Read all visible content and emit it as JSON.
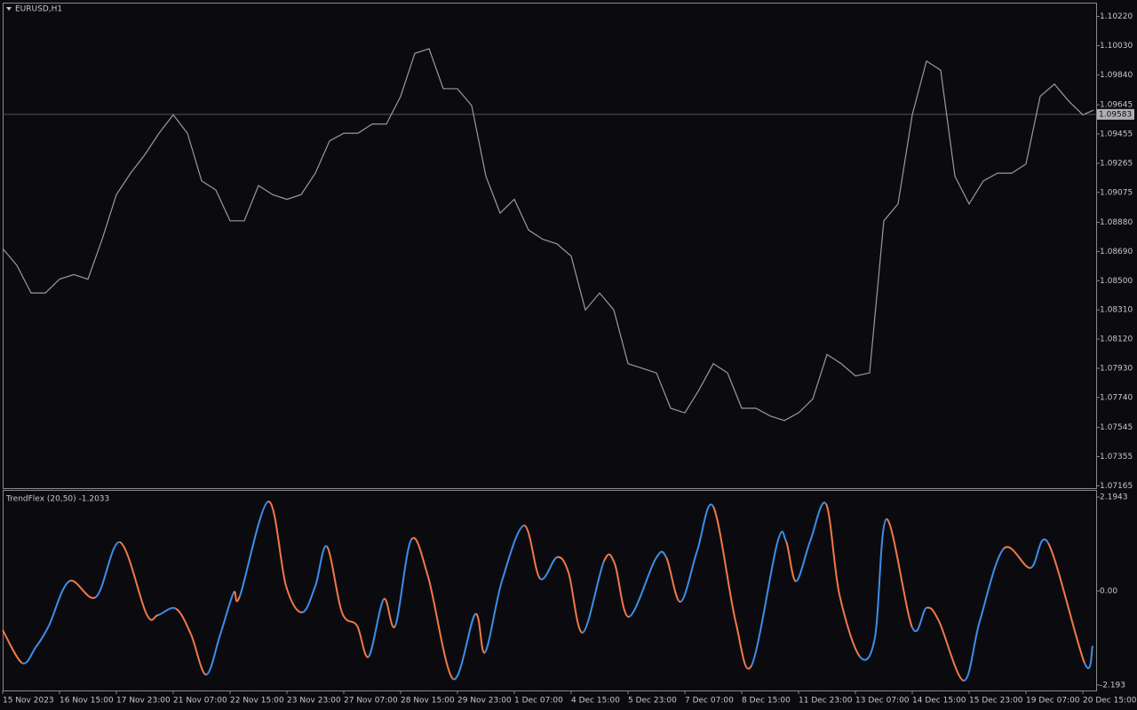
{
  "chart_data": [
    {
      "type": "line",
      "title": "EURUSD,H1",
      "color": "#9a9a9a",
      "x": [
        0,
        8,
        16,
        24,
        32,
        40,
        48,
        56,
        64,
        72,
        80,
        88,
        96,
        104,
        112,
        120,
        128,
        136,
        144,
        152,
        160,
        168,
        176,
        184,
        192,
        200,
        208,
        216,
        224,
        232,
        240,
        248,
        256,
        264,
        272,
        280,
        288,
        296,
        304,
        312,
        320,
        328,
        336,
        344,
        352,
        360,
        368,
        376,
        384,
        392,
        400,
        408,
        416,
        424,
        432,
        440,
        448,
        456,
        464,
        472,
        480,
        488,
        496,
        504,
        512,
        520,
        528,
        536,
        544,
        552,
        560,
        568,
        576,
        584,
        592,
        600,
        608,
        614
      ],
      "values": [
        1.0871,
        1.086,
        1.0842,
        1.0842,
        1.0851,
        1.0854,
        1.0851,
        1.0877,
        1.0906,
        1.092,
        1.0932,
        1.0946,
        1.0958,
        1.0946,
        1.0915,
        1.0909,
        1.0889,
        1.0889,
        1.0912,
        1.0906,
        1.0903,
        1.0906,
        1.092,
        1.0941,
        1.0946,
        1.0946,
        1.0952,
        1.0952,
        1.097,
        1.0998,
        1.1001,
        1.0975,
        1.0975,
        1.0964,
        1.0918,
        1.0894,
        1.0903,
        1.0883,
        1.0877,
        1.0874,
        1.0866,
        1.0831,
        1.0842,
        1.0831,
        1.0796,
        1.0793,
        1.079,
        1.0767,
        1.0764,
        1.0779,
        1.0796,
        1.079,
        1.0767,
        1.0767,
        1.0762,
        1.0759,
        1.0764,
        1.0773,
        1.0802,
        1.0796,
        1.0788,
        1.079,
        1.0889,
        1.09,
        1.0958,
        1.0993,
        1.0987,
        1.0918,
        1.09,
        1.0915,
        1.092,
        1.092,
        1.0926,
        1.097,
        1.0978,
        1.0967,
        1.0958,
        1.0961
      ],
      "xlim": [
        0,
        615.5
      ],
      "ylim": [
        1.0715,
        1.1031
      ],
      "yticks": [
        {
          "value": 1.1022,
          "label": "1.10220"
        },
        {
          "value": 1.1003,
          "label": "1.10030"
        },
        {
          "value": 1.0984,
          "label": "1.09840"
        },
        1.09645,
        1.09455,
        1.09265,
        1.09075,
        {
          "value": 1.0888,
          "label": "1.08880"
        },
        {
          "value": 1.0869,
          "label": "1.08690"
        },
        {
          "value": 1.085,
          "label": "1.08500"
        },
        {
          "value": 1.0831,
          "label": "1.08310"
        },
        {
          "value": 1.0812,
          "label": "1.08120"
        },
        {
          "value": 1.0793,
          "label": "1.07930"
        },
        {
          "value": 1.0774,
          "label": "1.07740"
        },
        1.07545,
        1.07355,
        1.07165
      ],
      "current_price": 1.09583
    },
    {
      "type": "line",
      "title": "TrendFlex (20,50) -1.2033",
      "up_color": "#3d8ee8",
      "down_color": "#f0784a",
      "x": [
        0,
        11,
        18.5,
        26,
        37.5,
        52.5,
        66,
        81,
        87.5,
        97.5,
        106,
        114.5,
        122.5,
        130,
        133.5,
        149.5,
        159.5,
        168.5,
        176,
        182.5,
        191,
        199.5,
        206,
        214.5,
        221,
        230,
        239.5,
        253.5,
        266,
        271.5,
        281,
        293.5,
        302.5,
        312,
        318.5,
        326.5,
        338.5,
        344.5,
        352.5,
        367.5,
        373.5,
        381.5,
        391,
        400,
        412.5,
        421.5,
        436,
        441,
        446.5,
        454.5,
        463.5,
        471,
        482.5,
        491,
        497.5,
        512,
        520,
        527,
        541,
        550,
        563.5,
        578.5,
        588.5,
        609,
        613.5
      ],
      "values": [
        -0.91,
        -1.68,
        -1.32,
        -0.81,
        0.23,
        -0.14,
        1.14,
        -0.54,
        -0.56,
        -0.41,
        -1.01,
        -1.95,
        -1.01,
        -0.04,
        -0.12,
        2.09,
        0.12,
        -0.5,
        0.12,
        1.04,
        -0.5,
        -0.81,
        -1.53,
        -0.19,
        -0.81,
        1.2,
        0.33,
        -2.05,
        -0.54,
        -1.43,
        0.23,
        1.53,
        0.29,
        0.79,
        0.43,
        -0.97,
        0.7,
        0.64,
        -0.6,
        0.75,
        0.79,
        -0.25,
        0.95,
        1.97,
        -0.7,
        -1.74,
        1.12,
        1.16,
        0.23,
        1.16,
        2.03,
        -0.08,
        -1.53,
        -1.08,
        1.68,
        -0.85,
        -0.39,
        -0.7,
        -2.09,
        -0.7,
        0.99,
        0.54,
        1.12,
        -1.68,
        -1.28
      ],
      "xlim": [
        0,
        615.5
      ],
      "ylim": [
        -2.32,
        2.34
      ],
      "yticks": [
        2.1943,
        {
          "value": 0,
          "label": "0.00"
        },
        -2.193
      ],
      "xticks": [
        {
          "value": 0,
          "label": "15 Nov 2023"
        },
        {
          "value": 32,
          "label": "16 Nov 15:00"
        },
        {
          "value": 64,
          "label": "17 Nov 23:00"
        },
        {
          "value": 96,
          "label": "21 Nov 07:00"
        },
        {
          "value": 128,
          "label": "22 Nov 15:00"
        },
        {
          "value": 160,
          "label": "23 Nov 23:00"
        },
        {
          "value": 192,
          "label": "27 Nov 07:00"
        },
        {
          "value": 224,
          "label": "28 Nov 15:00"
        },
        {
          "value": 256,
          "label": "29 Nov 23:00"
        },
        {
          "value": 288,
          "label": "1 Dec 07:00"
        },
        {
          "value": 320,
          "label": "4 Dec 15:00"
        },
        {
          "value": 352,
          "label": "5 Dec 23:00"
        },
        {
          "value": 384,
          "label": "7 Dec 07:00"
        },
        {
          "value": 416,
          "label": "8 Dec 15:00"
        },
        {
          "value": 448,
          "label": "11 Dec 23:00"
        },
        {
          "value": 480,
          "label": "13 Dec 07:00"
        },
        {
          "value": 512,
          "label": "14 Dec 15:00"
        },
        {
          "value": 544,
          "label": "15 Dec 23:00"
        },
        {
          "value": 576,
          "label": "19 Dec 07:00"
        },
        {
          "value": 608,
          "label": "20 Dec 15:00"
        }
      ]
    }
  ]
}
